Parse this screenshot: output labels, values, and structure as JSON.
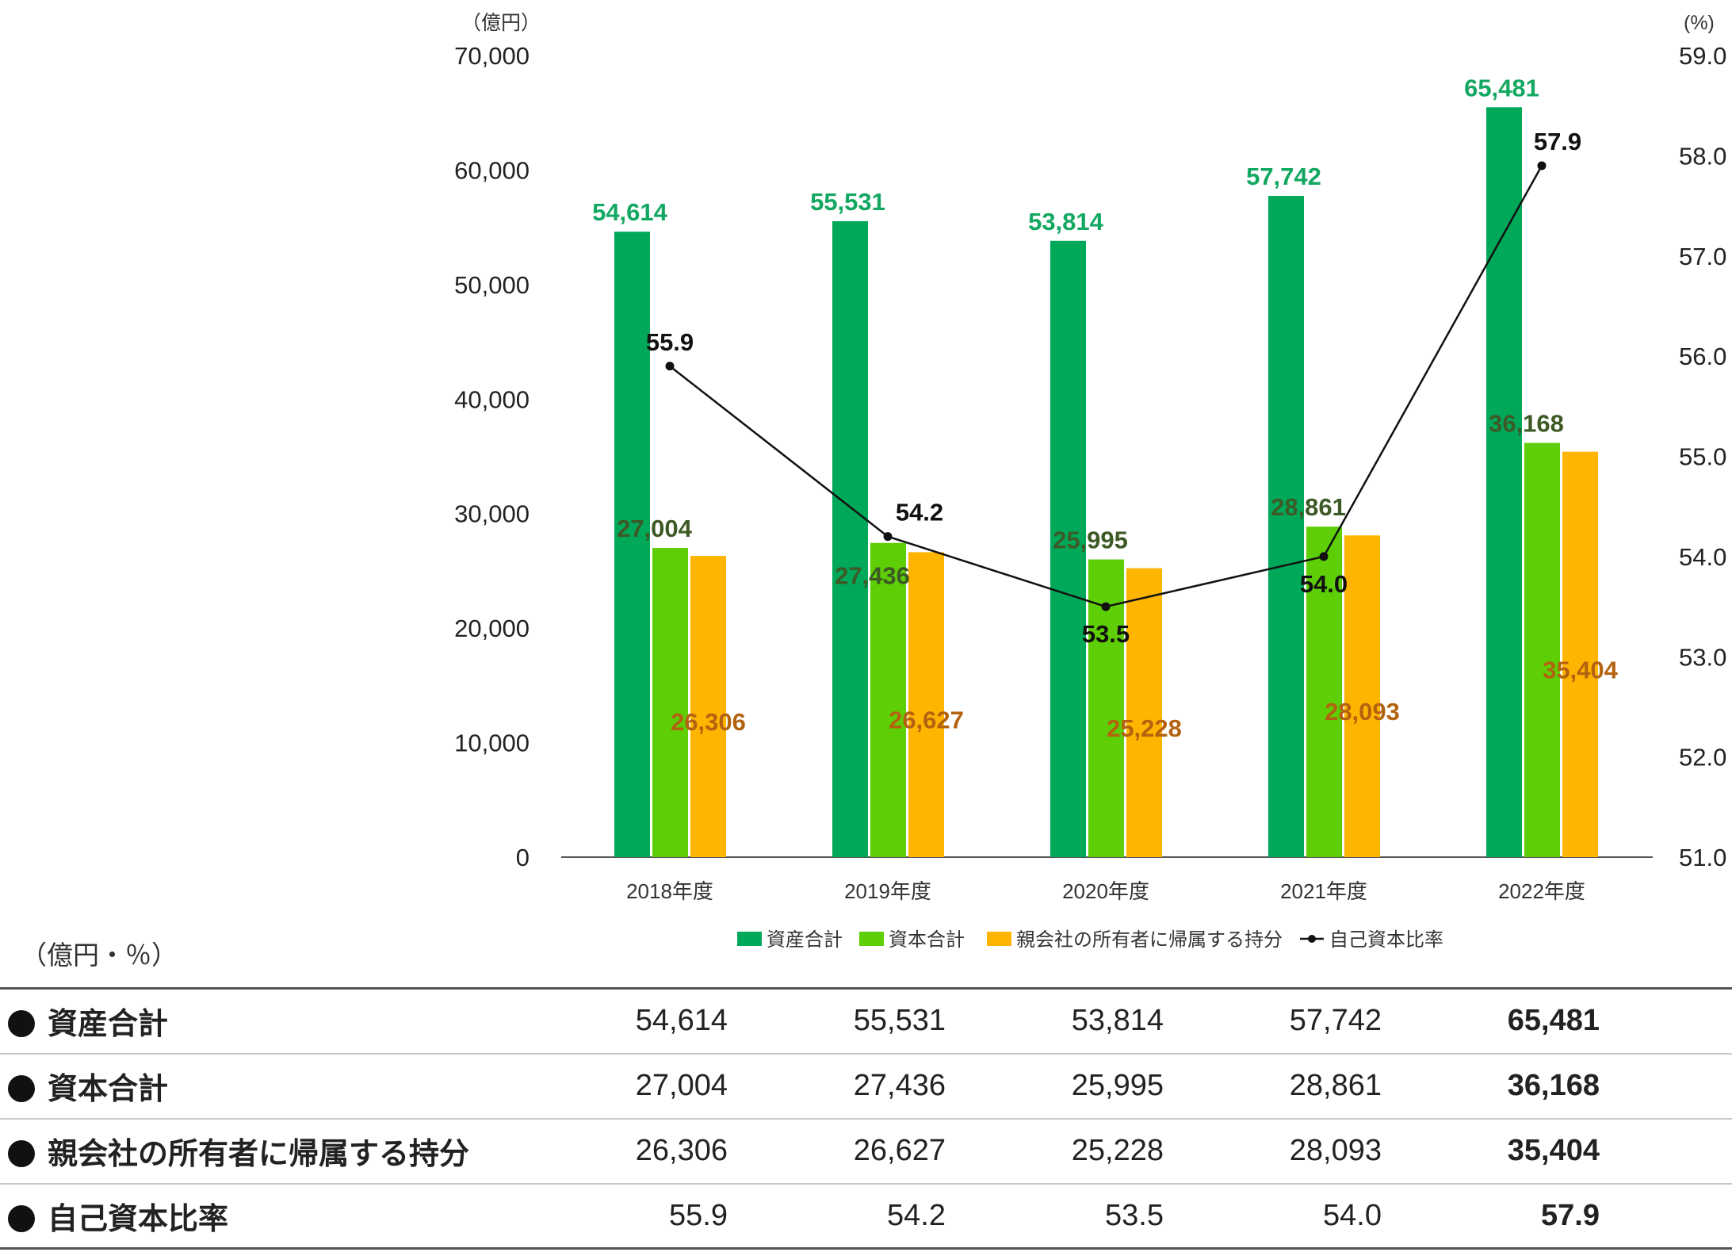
{
  "chart_data": {
    "type": "bar",
    "categories": [
      "2018年度",
      "2019年度",
      "2020年度",
      "2021年度",
      "2022年度"
    ],
    "series": [
      {
        "name": "資産合計",
        "kind": "bar",
        "axis": "left",
        "color": "#00a85a",
        "label_color": "#13a862",
        "values": [
          54614,
          55531,
          53814,
          57742,
          65481
        ]
      },
      {
        "name": "資本合計",
        "kind": "bar",
        "axis": "left",
        "color": "#5ecf06",
        "label_color": "#3d5a26",
        "values": [
          27004,
          27436,
          25995,
          28861,
          36168
        ]
      },
      {
        "name": "親会社の所有者に帰属する持分",
        "kind": "bar",
        "axis": "left",
        "color": "#ffb400",
        "label_color": "#b3620f",
        "values": [
          26306,
          26627,
          25228,
          28093,
          35404
        ]
      },
      {
        "name": "自己資本比率",
        "kind": "line",
        "axis": "right",
        "color": "#111111",
        "label_color": "#111111",
        "values": [
          55.9,
          54.2,
          53.5,
          54.0,
          57.9
        ]
      }
    ],
    "value_labels": [
      [
        "54,614",
        "55,531",
        "53,814",
        "57,742",
        "65,481"
      ],
      [
        "27,004",
        "27,436",
        "25,995",
        "28,861",
        "36,168"
      ],
      [
        "26,306",
        "26,627",
        "25,228",
        "28,093",
        "35,404"
      ],
      [
        "55.9",
        "54.2",
        "53.5",
        "54.0",
        "57.9"
      ]
    ],
    "y_left": {
      "unit": "（億円）",
      "ylim": [
        0,
        70000
      ],
      "ticks": [
        0,
        10000,
        20000,
        30000,
        40000,
        50000,
        60000,
        70000
      ],
      "tick_labels": [
        "0",
        "10,000",
        "20,000",
        "30,000",
        "40,000",
        "50,000",
        "60,000",
        "70,000"
      ]
    },
    "y_right": {
      "unit": "(%)",
      "ylim": [
        51.0,
        59.0
      ],
      "ticks": [
        51,
        52,
        53,
        54,
        55,
        56,
        57,
        58,
        59
      ],
      "tick_labels": [
        "51.0",
        "52.0",
        "53.0",
        "54.0",
        "55.0",
        "56.0",
        "57.0",
        "58.0",
        "59.0"
      ]
    },
    "grid": false,
    "legend_position": "bottom"
  },
  "table": {
    "unit": "（億円・％）",
    "rows": [
      {
        "label": "資産合計",
        "values": [
          "54,614",
          "55,531",
          "53,814",
          "57,742",
          "65,481"
        ]
      },
      {
        "label": "資本合計",
        "values": [
          "27,004",
          "27,436",
          "25,995",
          "28,861",
          "36,168"
        ]
      },
      {
        "label": "親会社の所有者に帰属する持分",
        "values": [
          "26,306",
          "26,627",
          "25,228",
          "28,093",
          "35,404"
        ]
      },
      {
        "label": "自己資本比率",
        "values": [
          "55.9",
          "54.2",
          "53.5",
          "54.0",
          "57.9"
        ]
      }
    ]
  }
}
